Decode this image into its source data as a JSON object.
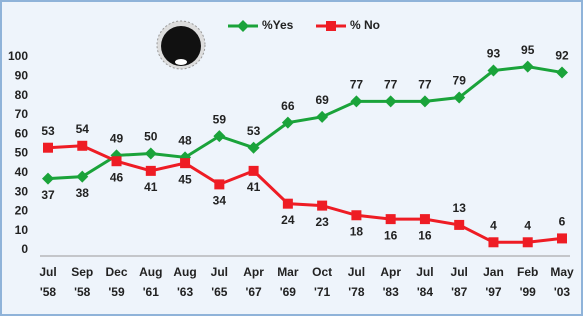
{
  "chart_data": {
    "type": "line",
    "categories": [
      [
        "Jul",
        "'58"
      ],
      [
        "Sep",
        "'58"
      ],
      [
        "Dec",
        "'59"
      ],
      [
        "Aug",
        "'61"
      ],
      [
        "Aug",
        "'63"
      ],
      [
        "Jul",
        "'65"
      ],
      [
        "Apr",
        "'67"
      ],
      [
        "Mar",
        "'69"
      ],
      [
        "Oct",
        "'71"
      ],
      [
        "Jul",
        "'78"
      ],
      [
        "Apr",
        "'83"
      ],
      [
        "Jul",
        "'84"
      ],
      [
        "Jul",
        "'87"
      ],
      [
        "Jan",
        "'97"
      ],
      [
        "Feb",
        "'99"
      ],
      [
        "May",
        "'03"
      ]
    ],
    "series": [
      {
        "name": "%Yes",
        "color": "#1aa33a",
        "marker": "diamond",
        "values": [
          37,
          38,
          49,
          50,
          48,
          59,
          53,
          66,
          69,
          77,
          77,
          77,
          79,
          93,
          95,
          92
        ]
      },
      {
        "name": "% No",
        "color": "#ee1c24",
        "marker": "square",
        "values": [
          53,
          54,
          46,
          41,
          45,
          34,
          41,
          24,
          23,
          18,
          16,
          16,
          13,
          4,
          4,
          6
        ]
      }
    ],
    "ylim": [
      0,
      100
    ],
    "yticks": [
      0,
      10,
      20,
      30,
      40,
      50,
      60,
      70,
      80,
      90,
      100
    ],
    "grid": false
  }
}
